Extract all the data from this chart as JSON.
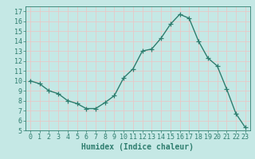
{
  "x": [
    0,
    1,
    2,
    3,
    4,
    5,
    6,
    7,
    8,
    9,
    10,
    11,
    12,
    13,
    14,
    15,
    16,
    17,
    18,
    19,
    20,
    21,
    22,
    23
  ],
  "y": [
    10.0,
    9.7,
    9.0,
    8.7,
    8.0,
    7.7,
    7.2,
    7.2,
    7.8,
    8.5,
    10.3,
    11.2,
    13.0,
    13.2,
    14.3,
    15.7,
    16.7,
    16.3,
    14.0,
    12.3,
    11.5,
    9.2,
    6.7,
    5.3
  ],
  "line_color": "#2e7d6e",
  "marker": "+",
  "marker_size": 4,
  "bg_color": "#c5e8e5",
  "grid_color": "#e8c8c8",
  "tick_color": "#2e7d6e",
  "xlabel": "Humidex (Indice chaleur)",
  "xlabel_fontsize": 7,
  "xlim": [
    -0.5,
    23.5
  ],
  "ylim": [
    5,
    17.5
  ],
  "yticks": [
    5,
    6,
    7,
    8,
    9,
    10,
    11,
    12,
    13,
    14,
    15,
    16,
    17
  ],
  "xticks": [
    0,
    1,
    2,
    3,
    4,
    5,
    6,
    7,
    8,
    9,
    10,
    11,
    12,
    13,
    14,
    15,
    16,
    17,
    18,
    19,
    20,
    21,
    22,
    23
  ],
  "tick_label_fontsize": 6,
  "line_width": 1.0
}
